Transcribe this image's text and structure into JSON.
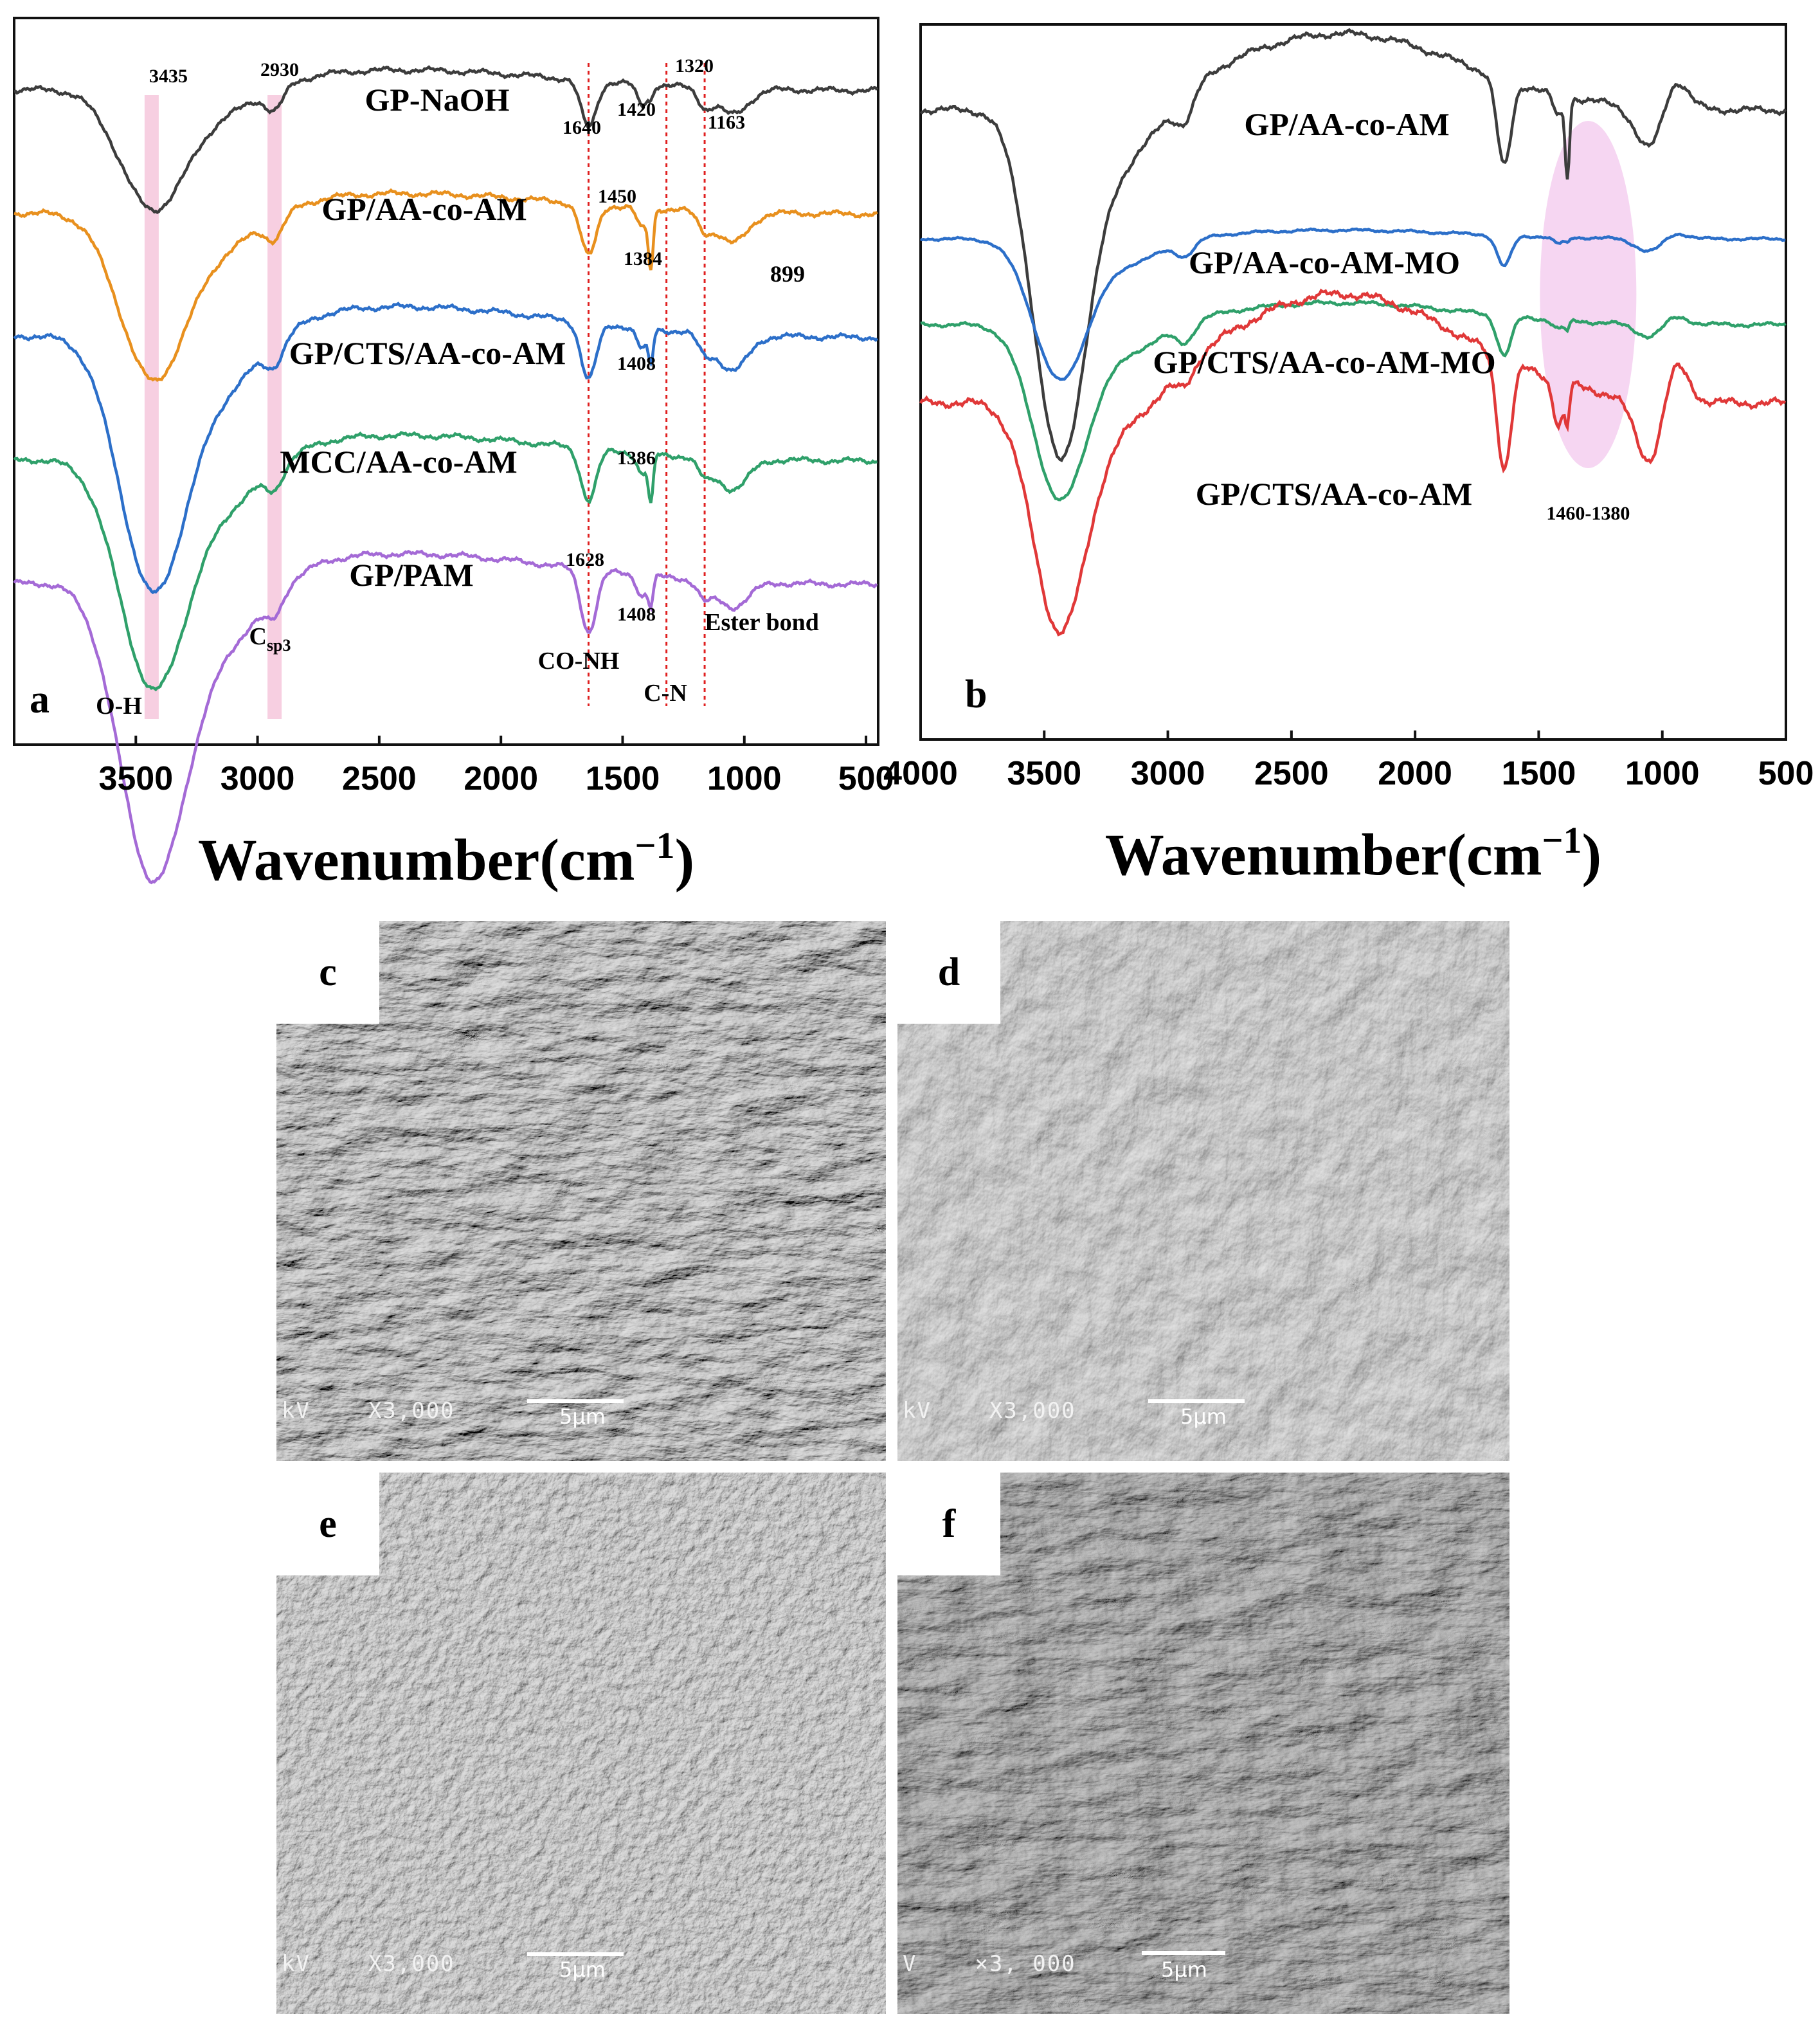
{
  "chart_data": [
    {
      "panel": "a",
      "type": "line",
      "xlabel_main": "Wavenumber(cm",
      "xlabel_sup": "−1",
      "xlabel_close": ")",
      "xlim": [
        4000,
        450
      ],
      "xticks": [
        3500,
        3000,
        2500,
        2000,
        1500,
        1000,
        500
      ],
      "series": [
        {
          "name": "GP-NaOH",
          "color": "#3c3c3c",
          "offset": 0.9
        },
        {
          "name": "GP/AA-co-AM",
          "color": "#e8901e",
          "offset": 0.73
        },
        {
          "name": "GP/CTS/AA-co-AM",
          "color": "#2c6fc9",
          "offset": 0.56
        },
        {
          "name": "MCC/AA-co-AM",
          "color": "#2fa06a",
          "offset": 0.39
        },
        {
          "name": "GP/PAM",
          "color": "#a46ad6",
          "offset": 0.22
        }
      ],
      "bands": [
        3435,
        2930
      ],
      "dashed_lines": [
        1640,
        1320,
        1163
      ],
      "peak_labels": [
        "3435",
        "2930",
        "1640",
        "1420",
        "1320",
        "1163",
        "1450",
        "1384",
        "899",
        "1408",
        "1386",
        "1628",
        "1408"
      ],
      "annotations": {
        "oh": "O-H",
        "csp3_main": "C",
        "csp3_sub": "sp3",
        "conh": "CO-NH",
        "cn": "C-N",
        "ester": "Ester bond"
      },
      "panel_label": "a"
    },
    {
      "panel": "b",
      "type": "line",
      "xlabel_main": "Wavenumber(cm",
      "xlabel_sup": "−1",
      "xlabel_close": ")",
      "xlim": [
        4000,
        500
      ],
      "xticks": [
        4000,
        3500,
        3000,
        2500,
        2000,
        1500,
        1000,
        500
      ],
      "series": [
        {
          "name": "GP/AA-co-AM",
          "color": "#3c3c3c",
          "offset": 0.88
        },
        {
          "name": "GP/AA-co-AM-MO",
          "color": "#2c6fc9",
          "offset": 0.7
        },
        {
          "name": "GP/CTS/AA-co-AM-MO",
          "color": "#2fa06a",
          "offset": 0.58
        },
        {
          "name": "GP/CTS/AA-co-AM",
          "color": "#e03838",
          "offset": 0.47
        }
      ],
      "highlight_region_label": "1460-1380",
      "panel_label": "b"
    }
  ],
  "sem": [
    {
      "label": "c",
      "info": "kV    X3,000",
      "scale": "5μm"
    },
    {
      "label": "d",
      "info": "kV    X3,000",
      "scale": "5μm"
    },
    {
      "label": "e",
      "info": "kV    X3,000",
      "scale": "5μm"
    },
    {
      "label": "f",
      "info": "V    ×3, 000",
      "scale": "5μm"
    }
  ]
}
